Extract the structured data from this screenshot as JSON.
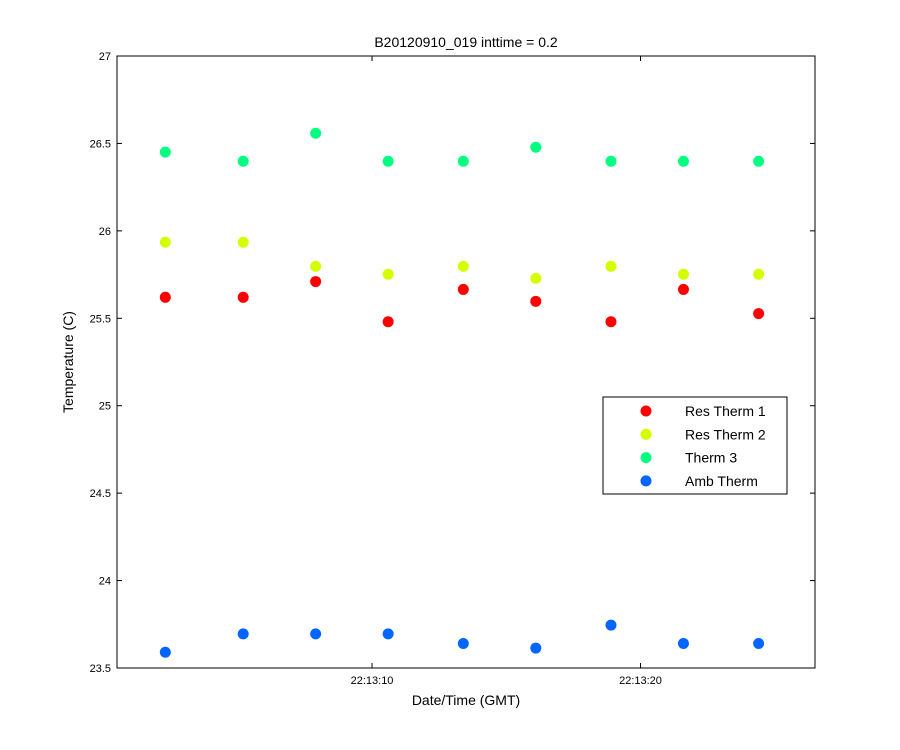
{
  "chart_data": {
    "type": "scatter",
    "title": "B20120910_019 inttime = 0.2",
    "xlabel": "Date/Time (GMT)",
    "ylabel": "Temperature (C)",
    "ylim": [
      23.5,
      27
    ],
    "yticks": [
      "23.5",
      "24",
      "24.5",
      "25",
      "25.5",
      "26",
      "26.5",
      "27"
    ],
    "xlim": [
      "22:13:00.5",
      "22:13:26.5"
    ],
    "xticks": [
      "22:13:10",
      "22:13:20"
    ],
    "x": [
      "22:13:02.3",
      "22:13:05.2",
      "22:13:07.9",
      "22:13:10.6",
      "22:13:13.4",
      "22:13:16.1",
      "22:13:18.9",
      "22:13:21.6",
      "22:13:24.4"
    ],
    "grid": false,
    "legend_position": "right",
    "series": [
      {
        "name": "Res Therm 1",
        "color": "#ff0000",
        "values": [
          25.62,
          25.62,
          25.71,
          25.48,
          25.665,
          25.597,
          25.48,
          25.665,
          25.527
        ]
      },
      {
        "name": "Res Therm 2",
        "color": "#d4ff00",
        "values": [
          25.935,
          25.935,
          25.797,
          25.752,
          25.797,
          25.728,
          25.797,
          25.752,
          25.752
        ]
      },
      {
        "name": "Therm 3",
        "color": "#00ff80",
        "values": [
          26.45,
          26.398,
          26.558,
          26.398,
          26.398,
          26.478,
          26.398,
          26.398,
          26.398
        ]
      },
      {
        "name": "Amb Therm",
        "color": "#0066ff",
        "values": [
          23.59,
          23.695,
          23.695,
          23.695,
          23.64,
          23.614,
          23.745,
          23.64,
          23.64
        ]
      }
    ]
  }
}
